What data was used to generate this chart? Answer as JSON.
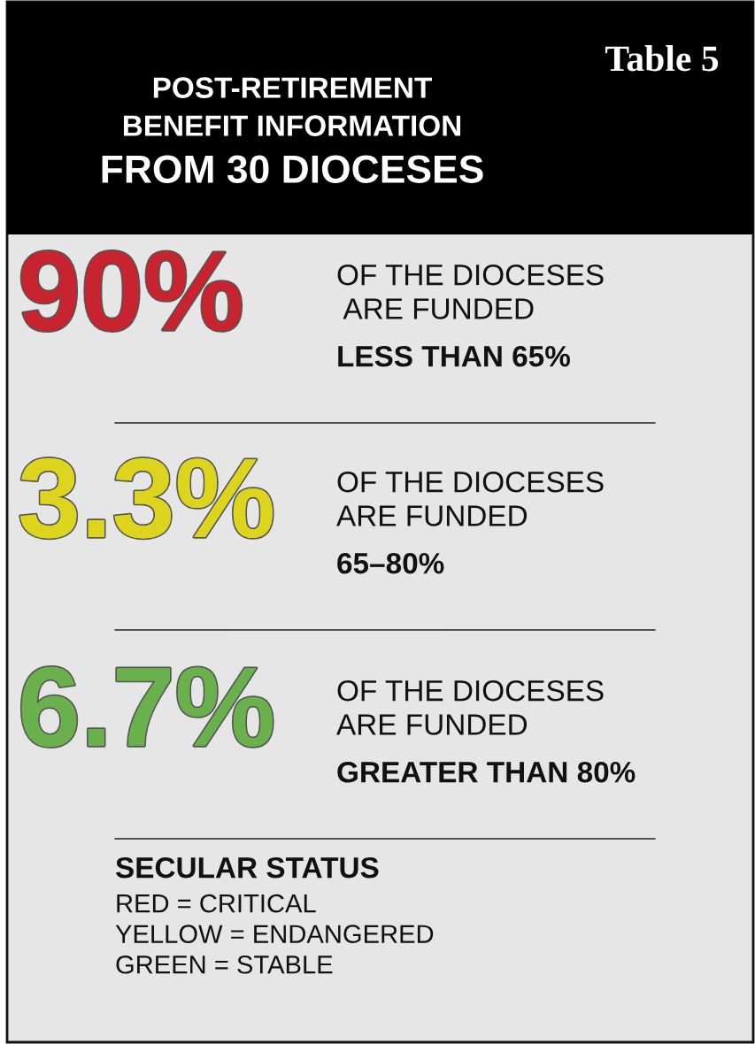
{
  "chart_data": {
    "type": "other",
    "title": "POST-RETIREMENT\nBENEFIT INFORMATION\nFROM 30 DIOCESES",
    "subtitle": "Table 5",
    "categories": [
      "LESS THAN 65%",
      "65–80%",
      "GREATER THAN 80%"
    ],
    "values": [
      90,
      3.3,
      6.7
    ],
    "value_labels": [
      "90%",
      "3.3%",
      "6.7%"
    ],
    "colors": [
      "#c8242f",
      "#ddd41e",
      "#6ab04c"
    ],
    "annotations": [
      "OF THE DIOCESES\n ARE FUNDED",
      "OF THE DIOCESES\nARE FUNDED",
      "OF THE DIOCESES\nARE FUNDED",
      "SECULAR STATUS",
      "RED = CRITICAL\nYELLOW = ENDANGERED\nGREEN = STABLE"
    ]
  }
}
